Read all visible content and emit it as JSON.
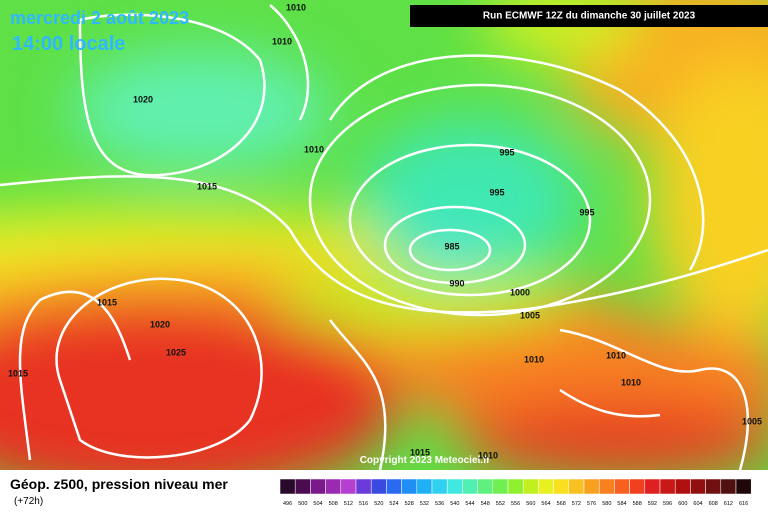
{
  "header": {
    "date": "mercredi 2 août 2023",
    "time": "14:00 locale",
    "run": "Run ECMWF 12Z du dimanche 30 juillet 2023"
  },
  "isobar_labels": [
    "1010",
    "1010",
    "1020",
    "1010",
    "1015",
    "995",
    "995",
    "995",
    "985",
    "990",
    "1000",
    "1005",
    "1015",
    "1020",
    "1025",
    "1015",
    "1010",
    "1010",
    "1010",
    "1005",
    "1015",
    "1010"
  ],
  "copyright": "Copyright 2023 Meteociel.fr",
  "legend": {
    "title": "Géop. z500, pression niveau mer",
    "lead": "(+72h)",
    "labels": [
      496,
      500,
      504,
      508,
      512,
      516,
      520,
      524,
      528,
      532,
      536,
      540,
      544,
      548,
      552,
      556,
      560,
      564,
      568,
      572,
      576,
      580,
      584,
      588,
      592,
      596,
      600,
      604,
      608,
      612,
      616
    ],
    "colors": [
      "#2a0a2a",
      "#4b0b4f",
      "#7a1a8a",
      "#9a2ab0",
      "#b53fd0",
      "#6a3bd8",
      "#3a4ae0",
      "#2a6af0",
      "#1f8ff5",
      "#20b0f5",
      "#30d0f0",
      "#40e8e0",
      "#50f0b0",
      "#60f080",
      "#70f050",
      "#90f030",
      "#c0f020",
      "#e8f020",
      "#f8e020",
      "#f8c020",
      "#f8a020",
      "#f88020",
      "#f86020",
      "#f04020",
      "#e02020",
      "#c81818",
      "#b01010",
      "#901010",
      "#701010",
      "#501010",
      "#200808"
    ]
  }
}
